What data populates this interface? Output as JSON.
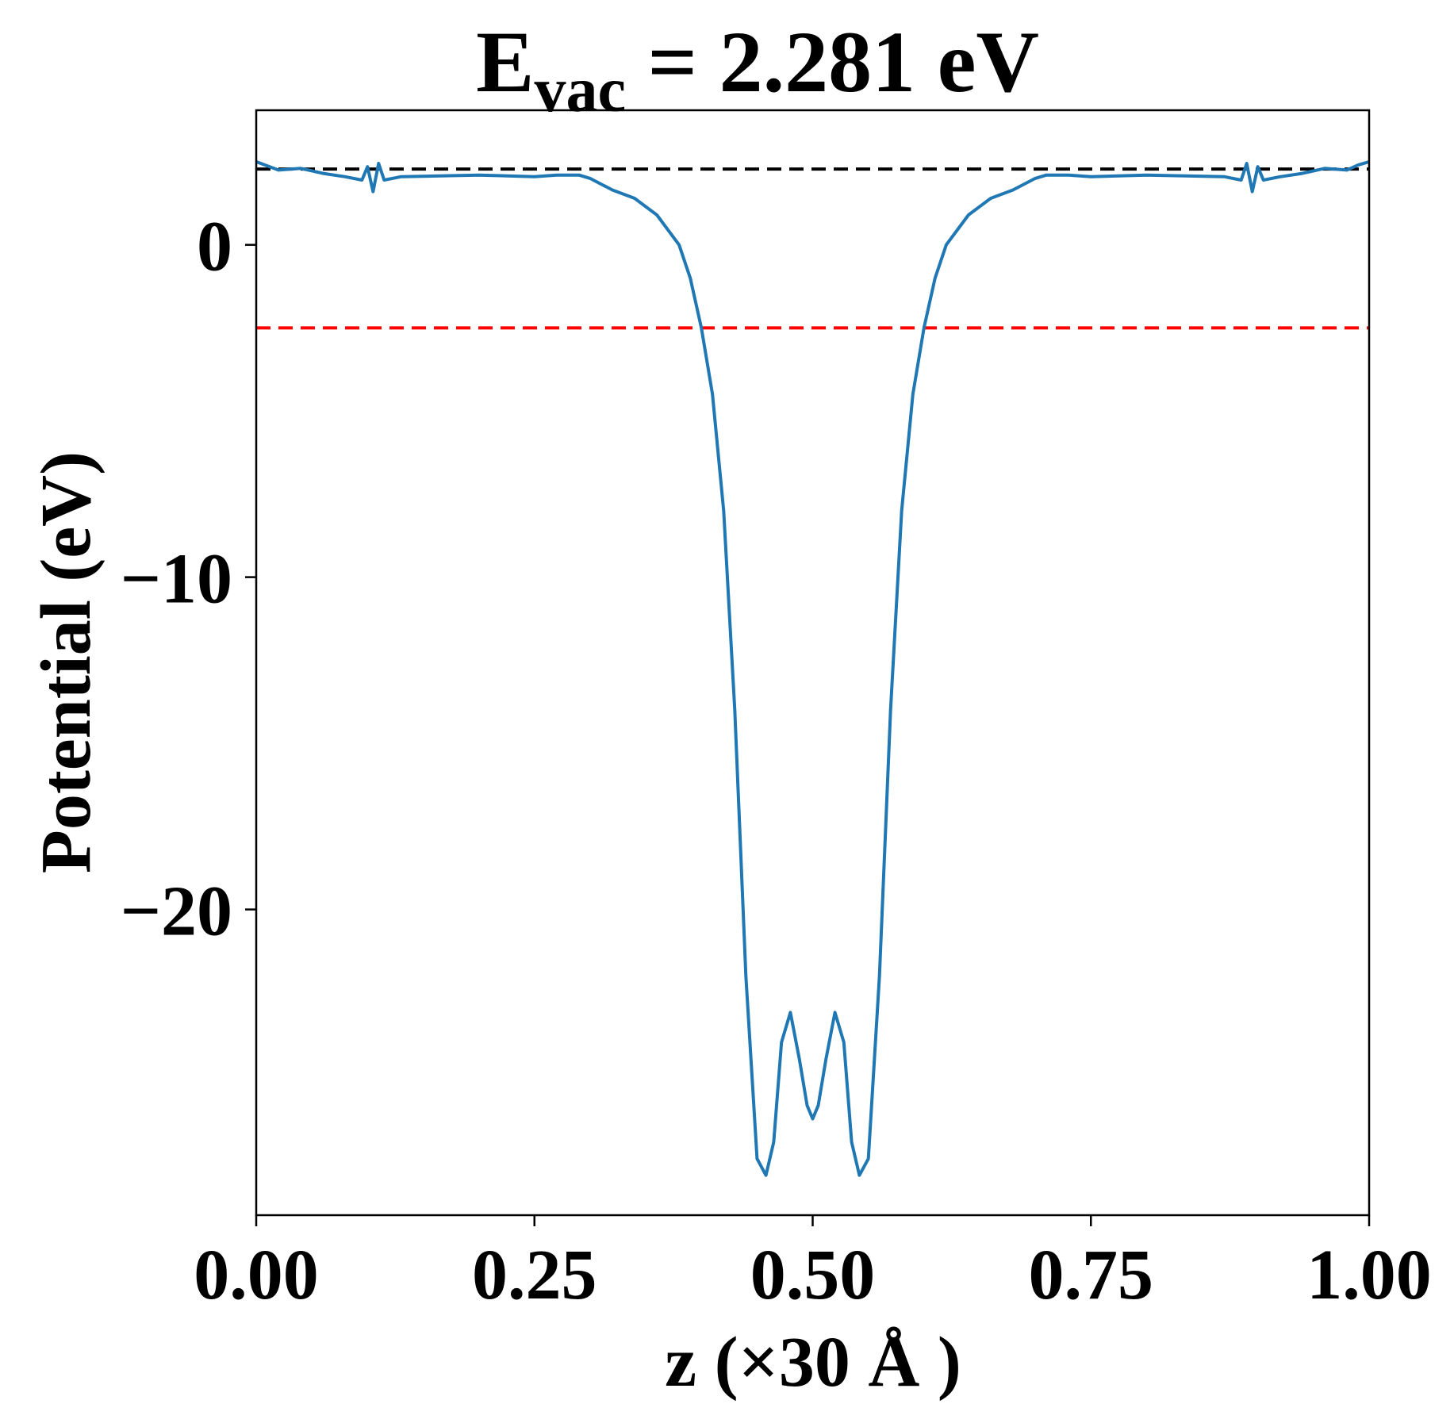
{
  "chart_data": {
    "type": "line",
    "title": "E",
    "title_subscript": "vac",
    "title_rest": " = 2.281 eV",
    "xlabel": "z (×30 Å )",
    "ylabel": "Potential (eV)",
    "xlim": [
      0.0,
      1.0
    ],
    "ylim": [
      -29.2,
      4.05
    ],
    "x_ticks": [
      0.0,
      0.25,
      0.5,
      0.75,
      1.0
    ],
    "x_tick_labels": [
      "0.00",
      "0.25",
      "0.50",
      "0.75",
      "1.00"
    ],
    "y_ticks": [
      0,
      -10,
      -20
    ],
    "y_tick_labels": [
      "0",
      "−10",
      "−20"
    ],
    "grid": false,
    "reference_lines": [
      {
        "name": "vacuum level",
        "y": 2.281,
        "color": "#000000",
        "style": "dashed"
      },
      {
        "name": "fermi level",
        "y": -2.5,
        "color": "#ff0000",
        "style": "dashed"
      }
    ],
    "series": [
      {
        "color": "#1f77b4",
        "points": [
          [
            0.0,
            2.5
          ],
          [
            0.02,
            2.25
          ],
          [
            0.04,
            2.3
          ],
          [
            0.06,
            2.15
          ],
          [
            0.08,
            2.05
          ],
          [
            0.095,
            1.95
          ],
          [
            0.1,
            2.35
          ],
          [
            0.105,
            1.6
          ],
          [
            0.11,
            2.45
          ],
          [
            0.115,
            1.95
          ],
          [
            0.13,
            2.05
          ],
          [
            0.2,
            2.1
          ],
          [
            0.25,
            2.05
          ],
          [
            0.27,
            2.1
          ],
          [
            0.29,
            2.1
          ],
          [
            0.3,
            2.0
          ],
          [
            0.32,
            1.65
          ],
          [
            0.34,
            1.4
          ],
          [
            0.36,
            0.9
          ],
          [
            0.38,
            0.0
          ],
          [
            0.39,
            -1.0
          ],
          [
            0.4,
            -2.5
          ],
          [
            0.41,
            -4.5
          ],
          [
            0.42,
            -8.0
          ],
          [
            0.43,
            -14.0
          ],
          [
            0.44,
            -22.0
          ],
          [
            0.45,
            -27.5
          ],
          [
            0.458,
            -28.0
          ],
          [
            0.465,
            -27.0
          ],
          [
            0.472,
            -24.0
          ],
          [
            0.48,
            -23.1
          ],
          [
            0.488,
            -24.5
          ],
          [
            0.495,
            -25.9
          ],
          [
            0.5,
            -26.3
          ],
          [
            0.505,
            -25.9
          ],
          [
            0.512,
            -24.5
          ],
          [
            0.52,
            -23.1
          ],
          [
            0.528,
            -24.0
          ],
          [
            0.535,
            -27.0
          ],
          [
            0.542,
            -28.0
          ],
          [
            0.55,
            -27.5
          ],
          [
            0.56,
            -22.0
          ],
          [
            0.57,
            -14.0
          ],
          [
            0.58,
            -8.0
          ],
          [
            0.59,
            -4.5
          ],
          [
            0.6,
            -2.5
          ],
          [
            0.61,
            -1.0
          ],
          [
            0.62,
            0.0
          ],
          [
            0.64,
            0.9
          ],
          [
            0.66,
            1.4
          ],
          [
            0.68,
            1.65
          ],
          [
            0.7,
            2.0
          ],
          [
            0.71,
            2.1
          ],
          [
            0.73,
            2.1
          ],
          [
            0.75,
            2.05
          ],
          [
            0.8,
            2.1
          ],
          [
            0.87,
            2.05
          ],
          [
            0.885,
            1.95
          ],
          [
            0.89,
            2.45
          ],
          [
            0.895,
            1.6
          ],
          [
            0.9,
            2.35
          ],
          [
            0.905,
            1.95
          ],
          [
            0.92,
            2.05
          ],
          [
            0.94,
            2.15
          ],
          [
            0.96,
            2.3
          ],
          [
            0.98,
            2.25
          ],
          [
            0.99,
            2.4
          ],
          [
            1.0,
            2.5
          ]
        ]
      }
    ]
  }
}
